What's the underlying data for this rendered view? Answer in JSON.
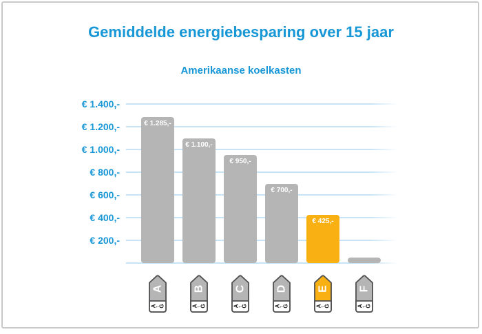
{
  "title": "Gemiddelde energiebesparing over 15 jaar",
  "subtitle": "Amerikaanse koelkasten",
  "colors": {
    "accent_blue": "#1797d6",
    "bar_gray": "#b5b5b5",
    "highlight_orange": "#f9b013",
    "gridline_blue": "#c7e4f6",
    "bar_label_white": "#ffffff",
    "icon_border_gray": "#4f4f51",
    "frame_gray": "#c9c9c9"
  },
  "chart_data": {
    "type": "bar",
    "title": "Gemiddelde energiebesparing over 15 jaar",
    "subtitle": "Amerikaanse koelkasten",
    "categories": [
      "A",
      "B",
      "C",
      "D",
      "E",
      "F"
    ],
    "values": [
      1285,
      1100,
      950,
      700,
      425,
      50
    ],
    "bar_labels": [
      "€ 1.285,-",
      "€ 1.100,-",
      "€ 950,-",
      "€ 700,-",
      "€ 425,-",
      ""
    ],
    "bar_colors": [
      "#b5b5b5",
      "#b5b5b5",
      "#b5b5b5",
      "#b5b5b5",
      "#f9b013",
      "#b5b5b5"
    ],
    "highlighted_category": "E",
    "y_axis": {
      "tick_labels": [
        "€ 1.400,-",
        "€ 1.200,-",
        "€ 1.000,-",
        "€ 800,-",
        "€ 600,-",
        "€ 400,-",
        "€ 200,-"
      ],
      "tick_values": [
        1400,
        1200,
        1000,
        800,
        600,
        400,
        200
      ],
      "range": [
        0,
        1400
      ],
      "currency": "€"
    },
    "x_axis": {
      "icon": "eu-energy-label-arrow",
      "icon_scale_text": "A←G"
    },
    "grid": "horizontal",
    "legend": "none"
  }
}
